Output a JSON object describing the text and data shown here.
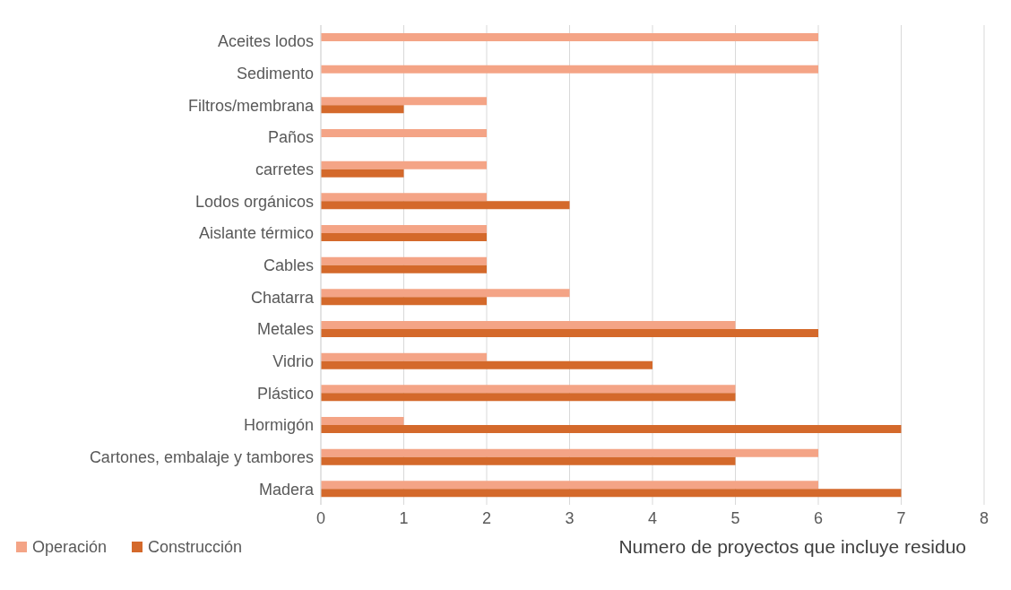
{
  "chart_data": {
    "type": "bar",
    "orientation": "horizontal",
    "xlabel": "Numero de proyectos que incluye residuo",
    "categories": [
      "Aceites lodos",
      "Sedimento",
      "Filtros/membrana",
      "Paños",
      "carretes",
      "Lodos orgánicos",
      "Aislante térmico",
      "Cables",
      "Chatarra ",
      "Metales",
      "Vidrio",
      "Plástico",
      "Hormigón",
      "Cartones, embalaje y tambores",
      "Madera"
    ],
    "series": [
      {
        "name": "Operación",
        "color": "#f4a486",
        "values": [
          6,
          6,
          2,
          2,
          2,
          2,
          2,
          2,
          3,
          5,
          2,
          5,
          1,
          6,
          6
        ]
      },
      {
        "name": "Construcción",
        "color": "#d4692b",
        "values": [
          null,
          null,
          1,
          null,
          1,
          3,
          2,
          2,
          2,
          6,
          4,
          5,
          7,
          5,
          7
        ]
      }
    ],
    "xlim": [
      0,
      8
    ],
    "xticks": [
      0,
      1,
      2,
      3,
      4,
      5,
      6,
      7,
      8
    ],
    "grid": "x",
    "legend": "bottom left"
  }
}
